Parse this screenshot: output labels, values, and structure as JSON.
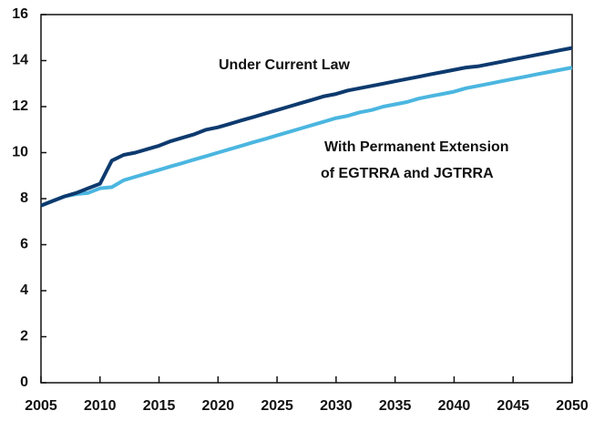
{
  "chart_data": {
    "type": "line",
    "x": [
      2005,
      2006,
      2007,
      2008,
      2009,
      2010,
      2011,
      2012,
      2013,
      2014,
      2015,
      2016,
      2017,
      2018,
      2019,
      2020,
      2021,
      2022,
      2023,
      2024,
      2025,
      2026,
      2027,
      2028,
      2029,
      2030,
      2031,
      2032,
      2033,
      2034,
      2035,
      2036,
      2037,
      2038,
      2039,
      2040,
      2041,
      2042,
      2043,
      2044,
      2045,
      2046,
      2047,
      2048,
      2049,
      2050
    ],
    "series": [
      {
        "color": "#0d3a6e",
        "values": [
          7.7,
          7.9,
          8.1,
          8.25,
          8.45,
          8.65,
          9.65,
          9.9,
          10.0,
          10.15,
          10.3,
          10.5,
          10.65,
          10.8,
          11.0,
          11.1,
          11.25,
          11.4,
          11.55,
          11.7,
          11.85,
          12.0,
          12.15,
          12.3,
          12.45,
          12.55,
          12.7,
          12.8,
          12.9,
          13.0,
          13.1,
          13.2,
          13.3,
          13.4,
          13.5,
          13.6,
          13.7,
          13.75,
          13.85,
          13.95,
          14.05,
          14.15,
          14.25,
          14.35,
          14.45,
          14.55
        ]
      },
      {
        "color": "#4bb6e0",
        "values": [
          7.7,
          7.9,
          8.1,
          8.2,
          8.25,
          8.45,
          8.5,
          8.8,
          8.95,
          9.1,
          9.25,
          9.4,
          9.55,
          9.7,
          9.85,
          10.0,
          10.15,
          10.3,
          10.45,
          10.6,
          10.75,
          10.9,
          11.05,
          11.2,
          11.35,
          11.5,
          11.6,
          11.75,
          11.85,
          12.0,
          12.1,
          12.2,
          12.35,
          12.45,
          12.55,
          12.65,
          12.8,
          12.9,
          13.0,
          13.1,
          13.2,
          13.3,
          13.4,
          13.5,
          13.6,
          13.7
        ]
      }
    ],
    "annotations": [
      "Under Current Law",
      "With Permanent Extension",
      "of  EGTRRA and JGTRRA"
    ],
    "xlim": [
      2005,
      2050
    ],
    "xticks": [
      2005,
      2010,
      2015,
      2020,
      2025,
      2030,
      2035,
      2040,
      2045,
      2050
    ],
    "ylim": [
      0,
      16
    ],
    "yticks": [
      0,
      2,
      4,
      6,
      8,
      10,
      12,
      14,
      16
    ],
    "grid": false
  }
}
